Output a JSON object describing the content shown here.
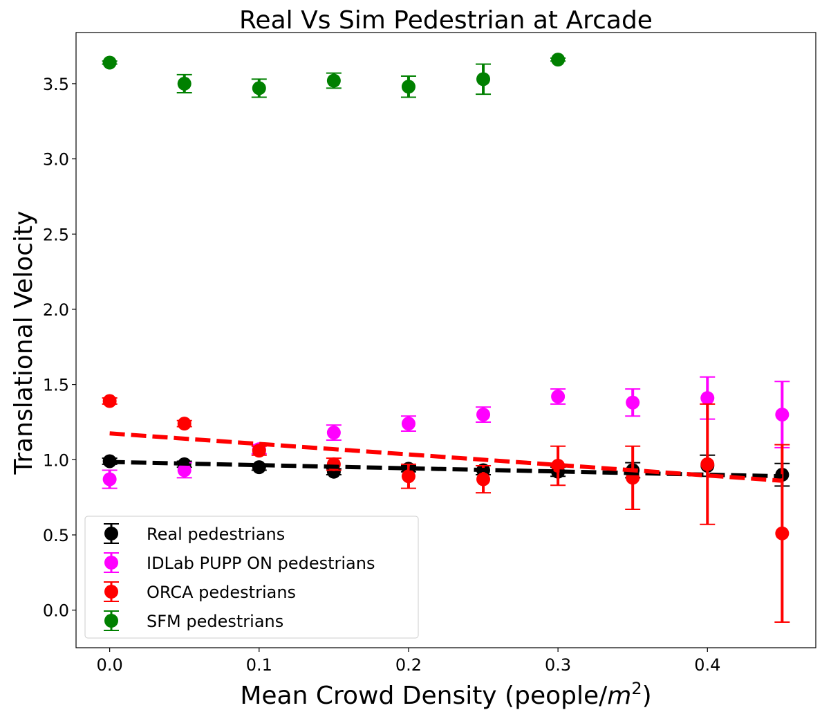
{
  "chart_data": {
    "type": "scatter",
    "title": "Real Vs Sim Pedestrian at Arcade",
    "xlabel": "Mean Crowd Density (people/",
    "xlabel_sup_base": "m",
    "xlabel_sup_exp": "2",
    "xlabel_close": ")",
    "ylabel": "Translational Velocity",
    "xlim": [
      -0.0225,
      0.4725
    ],
    "ylim": [
      -0.25,
      3.84
    ],
    "xticks": [
      0.0,
      0.1,
      0.2,
      0.3,
      0.4
    ],
    "xtick_labels": [
      "0.0",
      "0.1",
      "0.2",
      "0.3",
      "0.4"
    ],
    "yticks": [
      0.0,
      0.5,
      1.0,
      1.5,
      2.0,
      2.5,
      3.0,
      3.5
    ],
    "ytick_labels": [
      "0.0",
      "0.5",
      "1.0",
      "1.5",
      "2.0",
      "2.5",
      "3.0",
      "3.5"
    ],
    "grid": false,
    "legend_position": "lower-left",
    "series": [
      {
        "name": "Real pedestrians",
        "color": "#000000",
        "x": [
          0.0,
          0.05,
          0.1,
          0.15,
          0.2,
          0.25,
          0.3,
          0.35,
          0.4,
          0.45
        ],
        "y": [
          0.99,
          0.97,
          0.95,
          0.92,
          0.94,
          0.93,
          0.92,
          0.93,
          0.96,
          0.9
        ],
        "err": [
          0.02,
          0.02,
          0.02,
          0.02,
          0.02,
          0.03,
          0.03,
          0.05,
          0.07,
          0.075
        ]
      },
      {
        "name": "IDLab PUPP ON pedestrians",
        "color": "#ff00ff",
        "x": [
          0.0,
          0.05,
          0.1,
          0.15,
          0.2,
          0.25,
          0.3,
          0.35,
          0.4,
          0.45
        ],
        "y": [
          0.87,
          0.93,
          1.07,
          1.18,
          1.24,
          1.3,
          1.42,
          1.38,
          1.41,
          1.3
        ],
        "err": [
          0.06,
          0.05,
          0.03,
          0.05,
          0.05,
          0.05,
          0.05,
          0.09,
          0.14,
          0.22
        ]
      },
      {
        "name": "ORCA pedestrians",
        "color": "#ff0000",
        "x": [
          0.0,
          0.05,
          0.1,
          0.15,
          0.2,
          0.25,
          0.3,
          0.35,
          0.4,
          0.45
        ],
        "y": [
          1.39,
          1.24,
          1.06,
          0.97,
          0.89,
          0.87,
          0.96,
          0.88,
          0.97,
          0.51
        ],
        "err": [
          0.02,
          0.02,
          0.03,
          0.04,
          0.08,
          0.09,
          0.13,
          0.21,
          0.4,
          0.59
        ]
      },
      {
        "name": "SFM pedestrians",
        "color": "#008000",
        "x": [
          0.0,
          0.05,
          0.1,
          0.15,
          0.2,
          0.25,
          0.3
        ],
        "y": [
          3.64,
          3.5,
          3.47,
          3.52,
          3.48,
          3.53,
          3.66
        ],
        "err": [
          0.01,
          0.06,
          0.06,
          0.05,
          0.07,
          0.1,
          0.01
        ]
      }
    ],
    "trend_lines": [
      {
        "series": "Real pedestrians",
        "color": "#000000",
        "x": [
          0.0,
          0.45
        ],
        "y": [
          0.985,
          0.89
        ]
      },
      {
        "series": "ORCA pedestrians",
        "color": "#ff0000",
        "x": [
          0.0,
          0.45
        ],
        "y": [
          1.175,
          0.86
        ]
      }
    ]
  }
}
